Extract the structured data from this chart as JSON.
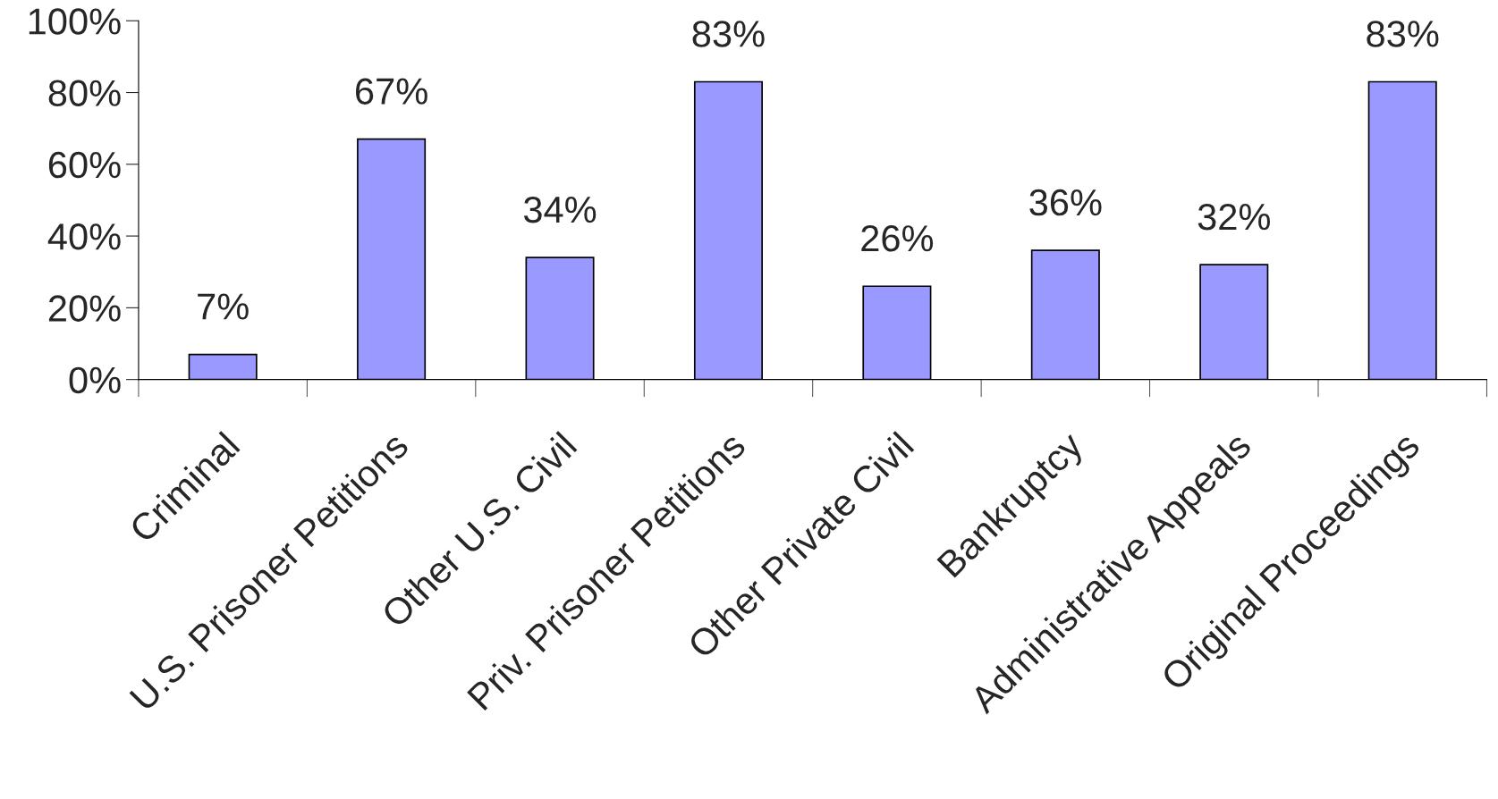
{
  "chart_data": {
    "type": "bar",
    "categories": [
      "Criminal",
      "U.S. Prisoner Petitions",
      "Other U.S. Civil",
      "Priv. Prisoner Petitions",
      "Other Private Civil",
      "Bankruptcy",
      "Administrative Appeals",
      "Original Proceedings"
    ],
    "values": [
      7,
      67,
      34,
      83,
      26,
      36,
      32,
      83
    ],
    "value_labels": [
      "7%",
      "67%",
      "34%",
      "83%",
      "26%",
      "36%",
      "32%",
      "83%"
    ],
    "color": "#9999ff",
    "ylim": [
      0,
      100
    ],
    "yticks": [
      {
        "value": 0,
        "label": "0%"
      },
      {
        "value": 20,
        "label": "20%"
      },
      {
        "value": 40,
        "label": "40%"
      },
      {
        "value": 60,
        "label": "60%"
      },
      {
        "value": 80,
        "label": "80%"
      },
      {
        "value": 100,
        "label": "100%"
      }
    ],
    "grid": false,
    "legend": false
  }
}
